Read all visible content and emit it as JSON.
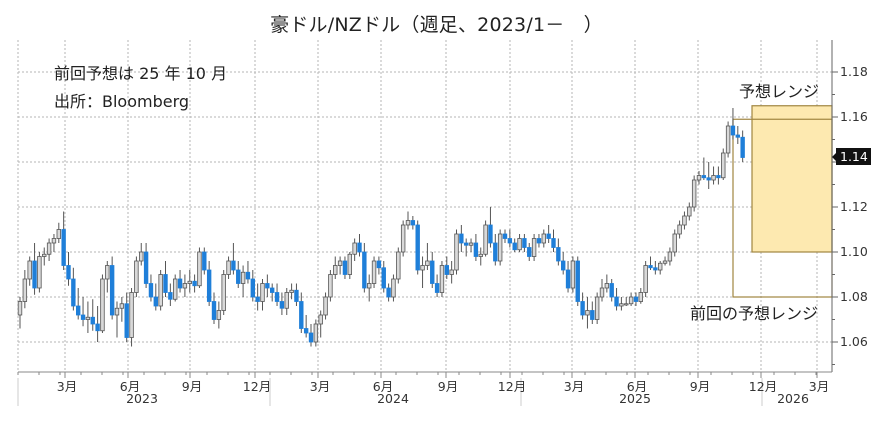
{
  "title": "豪ドル/NZドル（週足、2023/1－　）",
  "notes": {
    "line1": "前回予想は 25 年 10 月",
    "line2": "出所：Bloomberg"
  },
  "annotations": {
    "current_range_label": "予想レンジ",
    "previous_range_label": "前回の予想レンジ"
  },
  "y_axis": {
    "ticks": [
      "1.18",
      "1.16",
      "1.14",
      "1.12",
      "1.10",
      "1.08",
      "1.06"
    ],
    "current_value_badge": "1.14"
  },
  "x_axis": {
    "month_ticks": [
      "3月",
      "6月",
      "9月",
      "12月",
      "3月",
      "6月",
      "9月",
      "12月",
      "3月",
      "6月",
      "9月",
      "12月",
      "3月"
    ],
    "years": [
      "2023",
      "2024",
      "2025",
      "2026"
    ]
  },
  "colors": {
    "up_candle_fill": "#d9d9d9",
    "down_candle_fill": "#1f7fd9",
    "range_fill": "#fde9b0",
    "range_border": "#a08540",
    "grid": "#b5b5b5"
  },
  "chart_data": {
    "type": "candlestick",
    "title": "豪ドル/NZドル（週足、2023/1－　）",
    "xlabel": "",
    "ylabel": "",
    "ylim": [
      1.045,
      1.19
    ],
    "grid": true,
    "y_ticks": [
      1.06,
      1.08,
      1.1,
      1.12,
      1.14,
      1.16,
      1.18
    ],
    "x_ticks": [
      "2023-03",
      "2023-06",
      "2023-09",
      "2023-12",
      "2024-03",
      "2024-06",
      "2024-09",
      "2024-12",
      "2025-03",
      "2025-06",
      "2025-09",
      "2025-12",
      "2026-03"
    ],
    "last_value": 1.14,
    "forecast_ranges": [
      {
        "name": "予想レンジ",
        "low": 1.1,
        "high": 1.165,
        "start": "2025-11",
        "end": "2026-04"
      },
      {
        "name": "前回の予想レンジ",
        "low": 1.08,
        "high": 1.159,
        "start": "2025-10",
        "end": "2026-04"
      }
    ],
    "candles": [
      [
        1.072,
        1.08,
        1.066,
        1.078
      ],
      [
        1.078,
        1.092,
        1.075,
        1.088
      ],
      [
        1.088,
        1.098,
        1.085,
        1.096
      ],
      [
        1.096,
        1.104,
        1.081,
        1.084
      ],
      [
        1.084,
        1.1,
        1.082,
        1.098
      ],
      [
        1.098,
        1.102,
        1.094,
        1.099
      ],
      [
        1.099,
        1.106,
        1.096,
        1.104
      ],
      [
        1.104,
        1.108,
        1.1,
        1.106
      ],
      [
        1.106,
        1.113,
        1.104,
        1.11
      ],
      [
        1.11,
        1.118,
        1.092,
        1.094
      ],
      [
        1.094,
        1.1,
        1.085,
        1.088
      ],
      [
        1.088,
        1.093,
        1.074,
        1.076
      ],
      [
        1.076,
        1.084,
        1.07,
        1.072
      ],
      [
        1.072,
        1.08,
        1.067,
        1.07
      ],
      [
        1.07,
        1.078,
        1.064,
        1.071
      ],
      [
        1.071,
        1.079,
        1.065,
        1.068
      ],
      [
        1.068,
        1.076,
        1.06,
        1.065
      ],
      [
        1.065,
        1.09,
        1.064,
        1.088
      ],
      [
        1.088,
        1.096,
        1.082,
        1.094
      ],
      [
        1.094,
        1.098,
        1.07,
        1.072
      ],
      [
        1.072,
        1.078,
        1.062,
        1.075
      ],
      [
        1.075,
        1.08,
        1.069,
        1.077
      ],
      [
        1.077,
        1.082,
        1.06,
        1.062
      ],
      [
        1.062,
        1.084,
        1.058,
        1.082
      ],
      [
        1.082,
        1.098,
        1.08,
        1.096
      ],
      [
        1.096,
        1.104,
        1.094,
        1.1
      ],
      [
        1.1,
        1.104,
        1.084,
        1.086
      ],
      [
        1.086,
        1.09,
        1.078,
        1.08
      ],
      [
        1.08,
        1.086,
        1.074,
        1.076
      ],
      [
        1.076,
        1.092,
        1.074,
        1.09
      ],
      [
        1.09,
        1.096,
        1.08,
        1.082
      ],
      [
        1.082,
        1.086,
        1.076,
        1.079
      ],
      [
        1.079,
        1.09,
        1.078,
        1.088
      ],
      [
        1.088,
        1.092,
        1.082,
        1.084
      ],
      [
        1.084,
        1.09,
        1.08,
        1.086
      ],
      [
        1.086,
        1.092,
        1.082,
        1.087
      ],
      [
        1.087,
        1.09,
        1.082,
        1.085
      ],
      [
        1.085,
        1.102,
        1.084,
        1.1
      ],
      [
        1.1,
        1.102,
        1.09,
        1.092
      ],
      [
        1.092,
        1.096,
        1.076,
        1.078
      ],
      [
        1.078,
        1.082,
        1.068,
        1.07
      ],
      [
        1.07,
        1.078,
        1.066,
        1.074
      ],
      [
        1.074,
        1.092,
        1.072,
        1.09
      ],
      [
        1.09,
        1.098,
        1.088,
        1.096
      ],
      [
        1.096,
        1.104,
        1.09,
        1.092
      ],
      [
        1.092,
        1.096,
        1.084,
        1.086
      ],
      [
        1.086,
        1.094,
        1.08,
        1.091
      ],
      [
        1.091,
        1.096,
        1.086,
        1.088
      ],
      [
        1.088,
        1.092,
        1.078,
        1.08
      ],
      [
        1.08,
        1.086,
        1.074,
        1.078
      ],
      [
        1.078,
        1.088,
        1.074,
        1.086
      ],
      [
        1.086,
        1.09,
        1.08,
        1.084
      ],
      [
        1.084,
        1.086,
        1.078,
        1.082
      ],
      [
        1.082,
        1.086,
        1.076,
        1.078
      ],
      [
        1.078,
        1.082,
        1.072,
        1.075
      ],
      [
        1.075,
        1.084,
        1.072,
        1.082
      ],
      [
        1.082,
        1.086,
        1.079,
        1.083
      ],
      [
        1.083,
        1.086,
        1.076,
        1.078
      ],
      [
        1.078,
        1.082,
        1.064,
        1.066
      ],
      [
        1.066,
        1.072,
        1.062,
        1.064
      ],
      [
        1.064,
        1.068,
        1.058,
        1.06
      ],
      [
        1.06,
        1.07,
        1.058,
        1.068
      ],
      [
        1.068,
        1.074,
        1.062,
        1.072
      ],
      [
        1.072,
        1.082,
        1.07,
        1.08
      ],
      [
        1.08,
        1.092,
        1.078,
        1.09
      ],
      [
        1.09,
        1.098,
        1.088,
        1.094
      ],
      [
        1.094,
        1.098,
        1.09,
        1.096
      ],
      [
        1.096,
        1.098,
        1.088,
        1.09
      ],
      [
        1.09,
        1.1,
        1.088,
        1.099
      ],
      [
        1.099,
        1.106,
        1.096,
        1.104
      ],
      [
        1.104,
        1.108,
        1.098,
        1.1
      ],
      [
        1.1,
        1.104,
        1.082,
        1.084
      ],
      [
        1.084,
        1.09,
        1.078,
        1.086
      ],
      [
        1.086,
        1.098,
        1.084,
        1.096
      ],
      [
        1.096,
        1.098,
        1.09,
        1.093
      ],
      [
        1.093,
        1.096,
        1.082,
        1.084
      ],
      [
        1.084,
        1.086,
        1.078,
        1.08
      ],
      [
        1.08,
        1.09,
        1.078,
        1.088
      ],
      [
        1.088,
        1.102,
        1.086,
        1.1
      ],
      [
        1.1,
        1.114,
        1.098,
        1.112
      ],
      [
        1.112,
        1.118,
        1.11,
        1.114
      ],
      [
        1.114,
        1.116,
        1.11,
        1.112
      ],
      [
        1.112,
        1.114,
        1.09,
        1.092
      ],
      [
        1.092,
        1.098,
        1.084,
        1.094
      ],
      [
        1.094,
        1.104,
        1.092,
        1.096
      ],
      [
        1.096,
        1.1,
        1.084,
        1.086
      ],
      [
        1.086,
        1.09,
        1.08,
        1.082
      ],
      [
        1.082,
        1.096,
        1.08,
        1.094
      ],
      [
        1.094,
        1.098,
        1.088,
        1.09
      ],
      [
        1.09,
        1.096,
        1.086,
        1.092
      ],
      [
        1.092,
        1.11,
        1.09,
        1.108
      ],
      [
        1.108,
        1.112,
        1.1,
        1.104
      ],
      [
        1.104,
        1.106,
        1.098,
        1.103
      ],
      [
        1.103,
        1.106,
        1.1,
        1.104
      ],
      [
        1.104,
        1.108,
        1.096,
        1.098
      ],
      [
        1.098,
        1.102,
        1.094,
        1.099
      ],
      [
        1.099,
        1.114,
        1.098,
        1.112
      ],
      [
        1.112,
        1.12,
        1.102,
        1.104
      ],
      [
        1.104,
        1.108,
        1.094,
        1.096
      ],
      [
        1.096,
        1.11,
        1.094,
        1.108
      ],
      [
        1.108,
        1.11,
        1.104,
        1.106
      ],
      [
        1.106,
        1.11,
        1.102,
        1.104
      ],
      [
        1.104,
        1.106,
        1.1,
        1.101
      ],
      [
        1.101,
        1.108,
        1.1,
        1.106
      ],
      [
        1.106,
        1.108,
        1.1,
        1.102
      ],
      [
        1.102,
        1.104,
        1.096,
        1.098
      ],
      [
        1.098,
        1.108,
        1.096,
        1.106
      ],
      [
        1.106,
        1.108,
        1.102,
        1.104
      ],
      [
        1.104,
        1.11,
        1.102,
        1.108
      ],
      [
        1.108,
        1.112,
        1.104,
        1.106
      ],
      [
        1.106,
        1.11,
        1.1,
        1.102
      ],
      [
        1.102,
        1.106,
        1.094,
        1.096
      ],
      [
        1.096,
        1.1,
        1.09,
        1.092
      ],
      [
        1.092,
        1.096,
        1.082,
        1.084
      ],
      [
        1.084,
        1.098,
        1.082,
        1.096
      ],
      [
        1.096,
        1.098,
        1.076,
        1.078
      ],
      [
        1.078,
        1.082,
        1.07,
        1.072
      ],
      [
        1.072,
        1.08,
        1.066,
        1.074
      ],
      [
        1.074,
        1.078,
        1.068,
        1.07
      ],
      [
        1.07,
        1.082,
        1.068,
        1.08
      ],
      [
        1.08,
        1.088,
        1.078,
        1.084
      ],
      [
        1.084,
        1.09,
        1.082,
        1.086
      ],
      [
        1.086,
        1.088,
        1.078,
        1.08
      ],
      [
        1.08,
        1.084,
        1.074,
        1.076
      ],
      [
        1.076,
        1.08,
        1.074,
        1.077
      ],
      [
        1.077,
        1.08,
        1.076,
        1.077
      ],
      [
        1.077,
        1.082,
        1.076,
        1.08
      ],
      [
        1.08,
        1.082,
        1.076,
        1.078
      ],
      [
        1.078,
        1.084,
        1.077,
        1.082
      ],
      [
        1.082,
        1.096,
        1.08,
        1.094
      ],
      [
        1.094,
        1.098,
        1.092,
        1.093
      ],
      [
        1.093,
        1.096,
        1.09,
        1.092
      ],
      [
        1.092,
        1.096,
        1.09,
        1.095
      ],
      [
        1.095,
        1.098,
        1.094,
        1.096
      ],
      [
        1.096,
        1.102,
        1.094,
        1.1
      ],
      [
        1.1,
        1.11,
        1.098,
        1.108
      ],
      [
        1.108,
        1.114,
        1.106,
        1.112
      ],
      [
        1.112,
        1.118,
        1.11,
        1.116
      ],
      [
        1.116,
        1.122,
        1.114,
        1.12
      ],
      [
        1.12,
        1.134,
        1.118,
        1.132
      ],
      [
        1.132,
        1.136,
        1.13,
        1.134
      ],
      [
        1.134,
        1.142,
        1.132,
        1.133
      ],
      [
        1.133,
        1.14,
        1.128,
        1.132
      ],
      [
        1.132,
        1.138,
        1.13,
        1.134
      ],
      [
        1.134,
        1.138,
        1.13,
        1.133
      ],
      [
        1.133,
        1.146,
        1.132,
        1.144
      ],
      [
        1.144,
        1.158,
        1.142,
        1.156
      ],
      [
        1.156,
        1.164,
        1.15,
        1.152
      ],
      [
        1.152,
        1.156,
        1.148,
        1.151
      ],
      [
        1.151,
        1.154,
        1.14,
        1.142
      ]
    ]
  }
}
